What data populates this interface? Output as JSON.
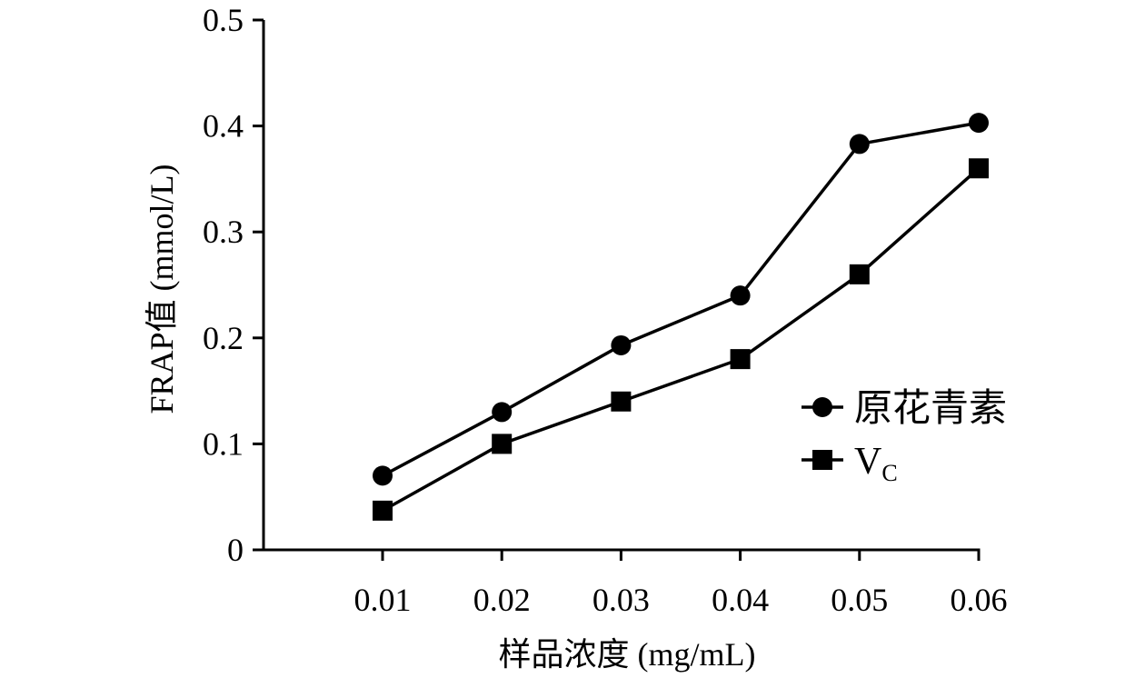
{
  "chart_data": {
    "type": "line",
    "title": "",
    "xlabel": "样品浓度 (mg/mL)",
    "ylabel": "FRAP值 (mmol/L)",
    "categories": [
      "0.01",
      "0.02",
      "0.03",
      "0.04",
      "0.05",
      "0.06"
    ],
    "ylim": [
      0,
      0.5
    ],
    "yticks": [
      "0",
      "0.1",
      "0.2",
      "0.3",
      "0.4",
      "0.5"
    ],
    "grid": false,
    "legend_position": "right",
    "series": [
      {
        "name_parts": [
          "原花青素",
          ""
        ],
        "marker": "circle",
        "color": "#000000",
        "values": [
          0.07,
          0.13,
          0.193,
          0.24,
          0.383,
          0.403
        ]
      },
      {
        "name_parts": [
          "V",
          "C"
        ],
        "marker": "square",
        "color": "#000000",
        "values": [
          0.037,
          0.1,
          0.14,
          0.18,
          0.26,
          0.36
        ]
      }
    ]
  }
}
